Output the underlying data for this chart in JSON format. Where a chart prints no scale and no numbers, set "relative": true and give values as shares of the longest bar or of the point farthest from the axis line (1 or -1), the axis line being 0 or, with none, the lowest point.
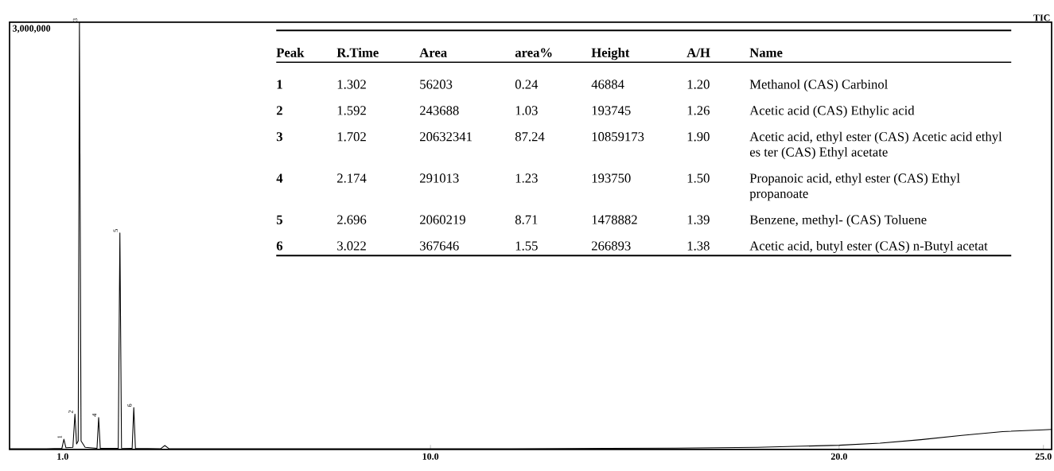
{
  "chart_data": [
    {
      "type": "line",
      "color": "#000000",
      "relative": true,
      "x": [
        -0.3,
        0.6,
        0.98,
        1.03,
        1.08,
        1.25,
        1.3,
        1.34,
        1.38,
        1.41,
        1.45,
        1.55,
        1.84,
        1.88,
        1.92,
        2.36,
        2.4,
        2.44,
        2.7,
        2.74,
        2.78,
        3.4,
        3.5,
        3.6,
        5,
        8,
        12,
        16,
        18,
        20,
        21,
        22,
        23,
        24,
        25,
        25.2
      ],
      "values": [
        0.0017,
        0.0017,
        0.0027,
        0.024,
        0.004,
        0.005,
        0.083,
        0.013,
        0.02,
        1,
        0.02,
        0.005,
        0.0027,
        0.075,
        0.0027,
        0.0027,
        0.507,
        0.0033,
        0.0027,
        0.098,
        0.0027,
        0.002,
        0.0093,
        0.002,
        0.0017,
        0.0017,
        0.002,
        0.0033,
        0.005,
        0.01,
        0.015,
        0.023,
        0.033,
        0.042,
        0.046,
        0.047
      ],
      "xlim": [
        -0.3,
        25.2
      ],
      "xticks": [
        {
          "value": 1,
          "label": "1.0"
        },
        {
          "value": 10,
          "label": "10.0"
        },
        {
          "value": 20,
          "label": "20.0"
        },
        {
          "value": 25,
          "label": "25.0"
        }
      ],
      "annotations": [
        "TIC",
        "3,000,000",
        {
          "text": "1",
          "x": 1.03,
          "y": 0.024
        },
        {
          "text": "2",
          "x": 1.3,
          "y": 0.083
        },
        {
          "text": "3",
          "x": 1.41,
          "y": 1
        },
        {
          "text": "4",
          "x": 1.88,
          "y": 0.075
        },
        {
          "text": "5",
          "x": 2.4,
          "y": 0.507
        },
        {
          "text": "6",
          "x": 2.74,
          "y": 0.098
        }
      ]
    },
    {
      "type": "other",
      "annotations": [
        "Peak",
        "R.Time",
        "Area",
        "area%",
        "Height",
        "A/H",
        "Name",
        "1",
        "1.302",
        "56203",
        "0.24",
        "46884",
        "1.20",
        "Methanol (CAS) Carbinol",
        "2",
        "1.592",
        "243688",
        "1.03",
        "193745",
        "1.26",
        "Acetic acid (CAS) Ethylic acid",
        "3",
        "1.702",
        "20632341",
        "87.24",
        "10859173",
        "1.90",
        "Acetic acid, ethyl ester (CAS) Acetic acid ethyl es ter (CAS) Ethyl acetate",
        "4",
        "2.174",
        "291013",
        "1.23",
        "193750",
        "1.50",
        "Propanoic acid, ethyl ester (CAS) Ethyl propanoate",
        "5",
        "2.696",
        "2060219",
        "8.71",
        "1478882",
        "1.39",
        "Benzene, methyl- (CAS) Toluene",
        "6",
        "3.022",
        "367646",
        "1.55",
        "266893",
        "1.38",
        "Acetic acid, butyl ester (CAS) n-Butyl acetat"
      ]
    }
  ]
}
